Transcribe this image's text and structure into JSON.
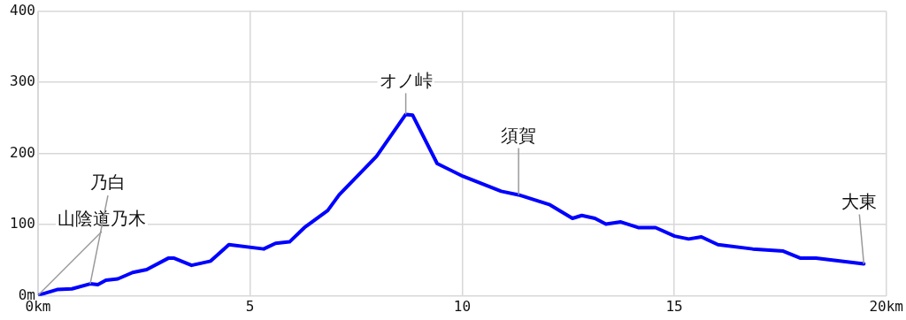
{
  "chart_data": {
    "type": "line",
    "x": [
      0,
      0.45,
      0.8,
      1.23,
      1.41,
      1.6,
      1.88,
      2.23,
      2.56,
      3.07,
      3.21,
      3.62,
      4.07,
      4.5,
      5.32,
      5.6,
      5.93,
      6.28,
      6.83,
      7.1,
      7.98,
      8.67,
      8.83,
      9.41,
      10.02,
      10.92,
      11.33,
      12.07,
      12.6,
      12.82,
      13.13,
      13.39,
      13.74,
      14.15,
      14.56,
      15.01,
      15.34,
      15.64,
      16.03,
      16.85,
      17.57,
      17.98,
      18.34,
      19.47
    ],
    "series": [
      {
        "color": "#0000ff",
        "values": [
          1,
          9,
          10,
          17,
          16,
          22,
          24,
          33,
          37,
          53,
          53,
          43,
          49,
          72,
          66,
          74,
          76,
          96,
          120,
          142,
          196,
          255,
          254,
          186,
          168,
          147,
          142,
          128,
          109,
          113,
          109,
          101,
          104,
          96,
          96,
          84,
          80,
          83,
          72,
          66,
          63,
          53,
          53,
          45
        ]
      }
    ],
    "xlim": [
      0,
      20
    ],
    "ylim": [
      0,
      400
    ],
    "xticks": [
      {
        "value": 0,
        "label": "0km"
      },
      5,
      10,
      15,
      {
        "value": 20,
        "label": "20km"
      }
    ],
    "yticks": [
      {
        "value": 0,
        "label": "0m"
      },
      100,
      200,
      300,
      400
    ],
    "grid": true,
    "legend": false,
    "marker": "none",
    "line_style": "solid",
    "annotations": [
      {
        "text": "山陰道乃木",
        "x": 0,
        "y": 1
      },
      {
        "text": "乃白",
        "x": 1.23,
        "y": 17
      },
      {
        "text": "オノ峠",
        "x": 8.67,
        "y": 255
      },
      {
        "text": "須賀",
        "x": 11.33,
        "y": 142
      },
      {
        "text": "大東",
        "x": 19.47,
        "y": 45
      }
    ]
  }
}
